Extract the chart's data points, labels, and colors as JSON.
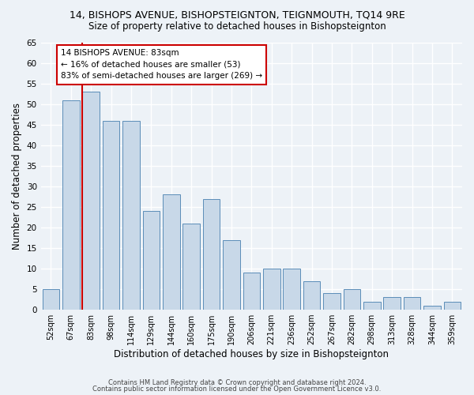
{
  "title": "14, BISHOPS AVENUE, BISHOPSTEIGNTON, TEIGNMOUTH, TQ14 9RE",
  "subtitle": "Size of property relative to detached houses in Bishopsteignton",
  "xlabel": "Distribution of detached houses by size in Bishopsteignton",
  "ylabel": "Number of detached properties",
  "categories": [
    "52sqm",
    "67sqm",
    "83sqm",
    "98sqm",
    "114sqm",
    "129sqm",
    "144sqm",
    "160sqm",
    "175sqm",
    "190sqm",
    "206sqm",
    "221sqm",
    "236sqm",
    "252sqm",
    "267sqm",
    "282sqm",
    "298sqm",
    "313sqm",
    "328sqm",
    "344sqm",
    "359sqm"
  ],
  "values": [
    5,
    51,
    53,
    46,
    46,
    24,
    28,
    21,
    27,
    17,
    9,
    10,
    10,
    7,
    4,
    5,
    2,
    3,
    3,
    1,
    2
  ],
  "bar_color": "#c8d8e8",
  "bar_edge_color": "#5b8db8",
  "highlight_index": 2,
  "highlight_line_color": "#cc0000",
  "annotation_text": "14 BISHOPS AVENUE: 83sqm\n← 16% of detached houses are smaller (53)\n83% of semi-detached houses are larger (269) →",
  "annotation_box_color": "#ffffff",
  "annotation_box_edge": "#cc0000",
  "ylim": [
    0,
    65
  ],
  "yticks": [
    0,
    5,
    10,
    15,
    20,
    25,
    30,
    35,
    40,
    45,
    50,
    55,
    60,
    65
  ],
  "background_color": "#edf2f7",
  "grid_color": "#ffffff",
  "footer_line1": "Contains HM Land Registry data © Crown copyright and database right 2024.",
  "footer_line2": "Contains public sector information licensed under the Open Government Licence v3.0.",
  "title_fontsize": 9,
  "subtitle_fontsize": 8.5,
  "xlabel_fontsize": 8.5,
  "ylabel_fontsize": 8.5
}
